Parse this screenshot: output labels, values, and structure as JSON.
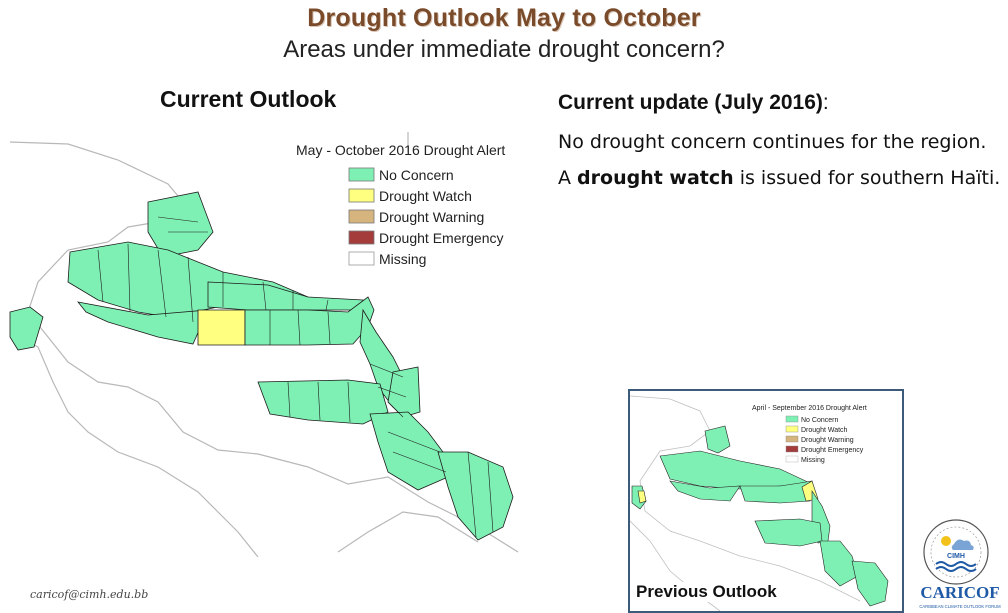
{
  "slide": {
    "title": "Drought Outlook May to October",
    "subtitle": "Areas under immediate drought concern?",
    "current_outlook_label": "Current Outlook",
    "previous_outlook_label": "Previous Outlook",
    "email": "caricof@cimh.edu.bb"
  },
  "update": {
    "heading": "Current update (July 2016)",
    "heading_suffix": ":",
    "line1": "No drought concern continues for the region.",
    "line2_prefix": "A ",
    "line2_bold": "drought watch",
    "line2_suffix": " is issued for southern Haïti."
  },
  "main_map": {
    "title": "May - October 2016 Drought Alert",
    "legend": [
      {
        "label": "No Concern",
        "color": "#7ff0b4"
      },
      {
        "label": "Drought Watch",
        "color": "#ffff80"
      },
      {
        "label": "Drought Warning",
        "color": "#d6b47e"
      },
      {
        "label": "Drought Emergency",
        "color": "#a43c3c"
      },
      {
        "label": "Missing",
        "color": "#ffffff"
      }
    ]
  },
  "prev_map": {
    "title": "April - September 2016 Drought Alert",
    "legend": [
      {
        "label": "No Concern",
        "color": "#7ff0b4"
      },
      {
        "label": "Drought Watch",
        "color": "#ffff80"
      },
      {
        "label": "Drought Warning",
        "color": "#d6b47e"
      },
      {
        "label": "Drought Emergency",
        "color": "#a43c3c"
      },
      {
        "label": "Missing",
        "color": "#ffffff"
      }
    ]
  },
  "logo": {
    "org": "CIMH",
    "name": "CARICOF",
    "tagline": "CARIBBEAN CLIMATE OUTLOOK FORUM"
  },
  "colors": {
    "title": "#7a4b2a",
    "no_concern": "#7ff0b4",
    "watch": "#ffff80",
    "land_outline": "#b8b8b8",
    "logo_blue": "#1f5aa6"
  }
}
